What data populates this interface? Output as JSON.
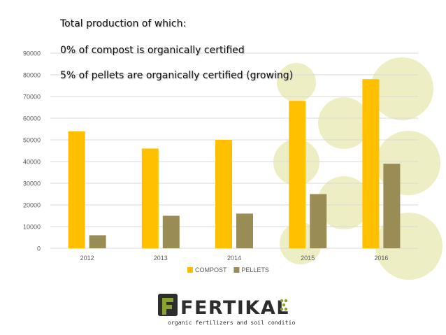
{
  "notes": {
    "line1": "Total production of which:",
    "line2": "0% of compost is organically certified",
    "line3": "5% of pellets are organically certified (growing)"
  },
  "logo": {
    "name": "FERTIKAL",
    "tagline": "organic fertilizers and soil conditioners"
  },
  "colors": {
    "compost": "#ffc000",
    "pellets": "#9a8c55",
    "circles": "#eeeec4",
    "logo_dark": "#2d2d2d",
    "logo_green": "#8aa232"
  },
  "chart_data": {
    "type": "bar",
    "categories": [
      "2012",
      "2013",
      "2014",
      "2015",
      "2016"
    ],
    "series": [
      {
        "name": "COMPOST",
        "values": [
          54000,
          46000,
          50000,
          68000,
          78000
        ]
      },
      {
        "name": "PELLETS",
        "values": [
          6000,
          15000,
          16000,
          25000,
          39000
        ]
      }
    ],
    "yticks": [
      0,
      10000,
      20000,
      30000,
      40000,
      50000,
      60000,
      70000,
      80000,
      90000
    ],
    "ylim": [
      0,
      90000
    ],
    "grid": true,
    "legend": "bottom"
  }
}
